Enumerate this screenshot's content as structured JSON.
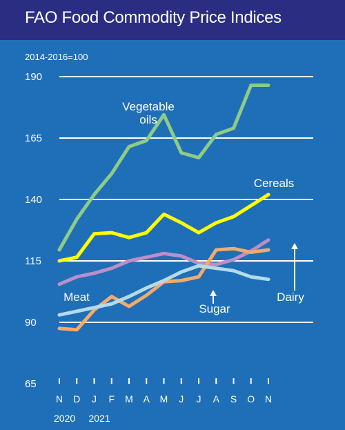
{
  "title": "FAO Food Commodity Price Indices",
  "colors": {
    "background": "#1f6fb8",
    "header": "#2b2d83",
    "grid": "#ffffff",
    "text": "#ffffff"
  },
  "chart_data": {
    "type": "line",
    "unit_note": "2014-2016=100",
    "ylim": [
      65,
      190
    ],
    "yticks": [
      65,
      90,
      115,
      140,
      165,
      190
    ],
    "grid": true,
    "categories": [
      "N",
      "D",
      "J",
      "F",
      "M",
      "A",
      "M",
      "J",
      "J",
      "A",
      "S",
      "O",
      "N"
    ],
    "year_labels": [
      {
        "label": "2020",
        "category_index": 0
      },
      {
        "label": "2021",
        "category_index": 2
      }
    ],
    "series": [
      {
        "name": "Vegetable oils",
        "name_lines": [
          "Vegetable",
          "oils"
        ],
        "color": "#8ecb86",
        "values": [
          119.5,
          132,
          142,
          150.5,
          161.5,
          164,
          174.5,
          159,
          157,
          166.5,
          169,
          186.5,
          186.5
        ]
      },
      {
        "name": "Cereals",
        "name_lines": [
          "Cereals"
        ],
        "color": "#ffff00",
        "values": [
          115,
          116.5,
          126,
          126.5,
          124.5,
          126.5,
          134,
          130.5,
          126.5,
          130.5,
          133,
          137.5,
          142
        ]
      },
      {
        "name": "Meat",
        "name_lines": [
          "Meat"
        ],
        "color": "#bb8fc7",
        "values": [
          105.5,
          108.5,
          110,
          112,
          115,
          116.5,
          118,
          117,
          114,
          113.5,
          115.5,
          119,
          123.5
        ]
      },
      {
        "name": "Sugar",
        "name_lines": [
          "Sugar"
        ],
        "color": "#f2ab6d",
        "values": [
          87.5,
          87,
          95,
          100.5,
          96.5,
          101,
          106.5,
          107,
          108.5,
          119.5,
          120,
          118.5,
          119.5
        ]
      },
      {
        "name": "Dairy",
        "name_lines": [
          "Dairy"
        ],
        "color": "#b3dbe9",
        "values": [
          93,
          94.5,
          96,
          97.5,
          100.5,
          104,
          107,
          110.5,
          113,
          112,
          111,
          108.5,
          107.5
        ]
      }
    ],
    "labels": [
      {
        "series": 0,
        "x": 215,
        "y": 160,
        "anchor": "middle"
      },
      {
        "series": 1,
        "x": 397,
        "y": 271,
        "anchor": "middle"
      },
      {
        "series": 2,
        "x": 111,
        "y": 436,
        "anchor": "middle"
      },
      {
        "series": 3,
        "x": 311,
        "y": 453,
        "anchor": "middle"
      },
      {
        "series": 4,
        "x": 421,
        "y": 436,
        "anchor": "middle"
      }
    ],
    "pointers": [
      {
        "series": 3,
        "x": 309,
        "y1": 440,
        "y2": 420
      },
      {
        "series": 4,
        "x": 427,
        "y1": 421,
        "y2": 352
      }
    ]
  }
}
